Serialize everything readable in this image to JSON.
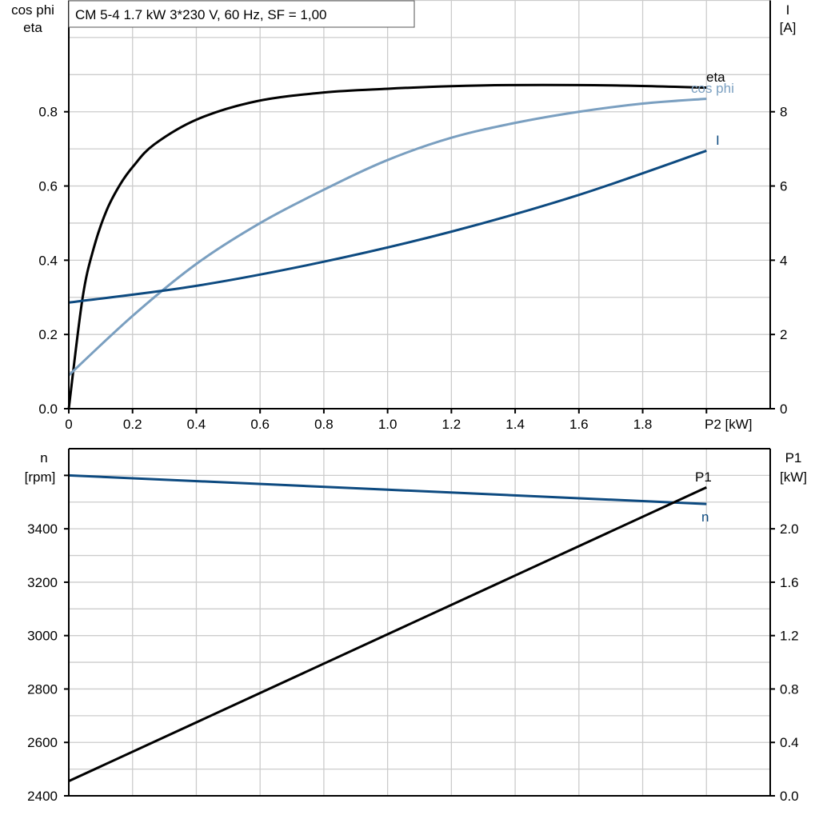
{
  "title": "CM 5-4   1.7 kW   3*230 V, 60 Hz, SF = 1,00",
  "colors": {
    "eta": "#000000",
    "cos_phi": "#7a9fc0",
    "current": "#0d4a80",
    "speed": "#0d4a80",
    "p1": "#000000",
    "grid": "#cccccc"
  },
  "chart_data": [
    {
      "type": "line",
      "ylabel_left": [
        "cos phi",
        "eta"
      ],
      "ylabel_right": [
        "I",
        "[A]"
      ],
      "xlabel": "P2 [kW]",
      "xlim": [
        0,
        2.2
      ],
      "ylim_left": [
        0,
        1.1
      ],
      "ylim_right": [
        0,
        11
      ],
      "x_ticks": [
        "0",
        "0.2",
        "0.4",
        "0.6",
        "0.8",
        "1.0",
        "1.2",
        "1.4",
        "1.6",
        "1.8"
      ],
      "y_ticks_left": [
        "0.0",
        "0.2",
        "0.4",
        "0.6",
        "0.8"
      ],
      "y_ticks_right": [
        "0",
        "2",
        "4",
        "6",
        "8"
      ],
      "grid": true,
      "series": [
        {
          "name": "eta",
          "axis": "left",
          "x": [
            0,
            0.043,
            0.078,
            0.118,
            0.161,
            0.203,
            0.268,
            0.404,
            0.587,
            0.8,
            1.0,
            1.2,
            1.4,
            1.7,
            2.0
          ],
          "y": [
            0,
            0.297,
            0.432,
            0.533,
            0.604,
            0.654,
            0.712,
            0.78,
            0.828,
            0.852,
            0.862,
            0.869,
            0.872,
            0.871,
            0.865
          ]
        },
        {
          "name": "cos phi",
          "axis": "left",
          "x": [
            0,
            0.2,
            0.4,
            0.6,
            0.8,
            1.0,
            1.2,
            1.4,
            1.6,
            1.8,
            2.0
          ],
          "y": [
            0.09,
            0.25,
            0.39,
            0.5,
            0.59,
            0.67,
            0.73,
            0.77,
            0.8,
            0.822,
            0.835
          ]
        },
        {
          "name": "I",
          "axis": "right",
          "x": [
            0,
            0.4,
            0.8,
            1.2,
            1.6,
            2.0
          ],
          "y": [
            2.86,
            3.31,
            3.96,
            4.77,
            5.76,
            6.95
          ]
        }
      ]
    },
    {
      "type": "line",
      "ylabel_left": [
        "n",
        "[rpm]"
      ],
      "ylabel_right": [
        "P1",
        "[kW]"
      ],
      "xlim": [
        0,
        2.2
      ],
      "ylim_left": [
        2400,
        3700
      ],
      "ylim_right": [
        0,
        2.6
      ],
      "y_ticks_left": [
        "2400",
        "2600",
        "2800",
        "3000",
        "3200",
        "3400"
      ],
      "y_ticks_right": [
        "0.0",
        "0.4",
        "0.8",
        "1.2",
        "1.6",
        "2.0"
      ],
      "grid": true,
      "series": [
        {
          "name": "n",
          "axis": "left",
          "x": [
            0,
            2.0
          ],
          "y": [
            3600,
            3493
          ]
        },
        {
          "name": "P1",
          "axis": "right",
          "x": [
            0,
            2.0
          ],
          "y": [
            0.11,
            2.31
          ]
        }
      ]
    }
  ]
}
